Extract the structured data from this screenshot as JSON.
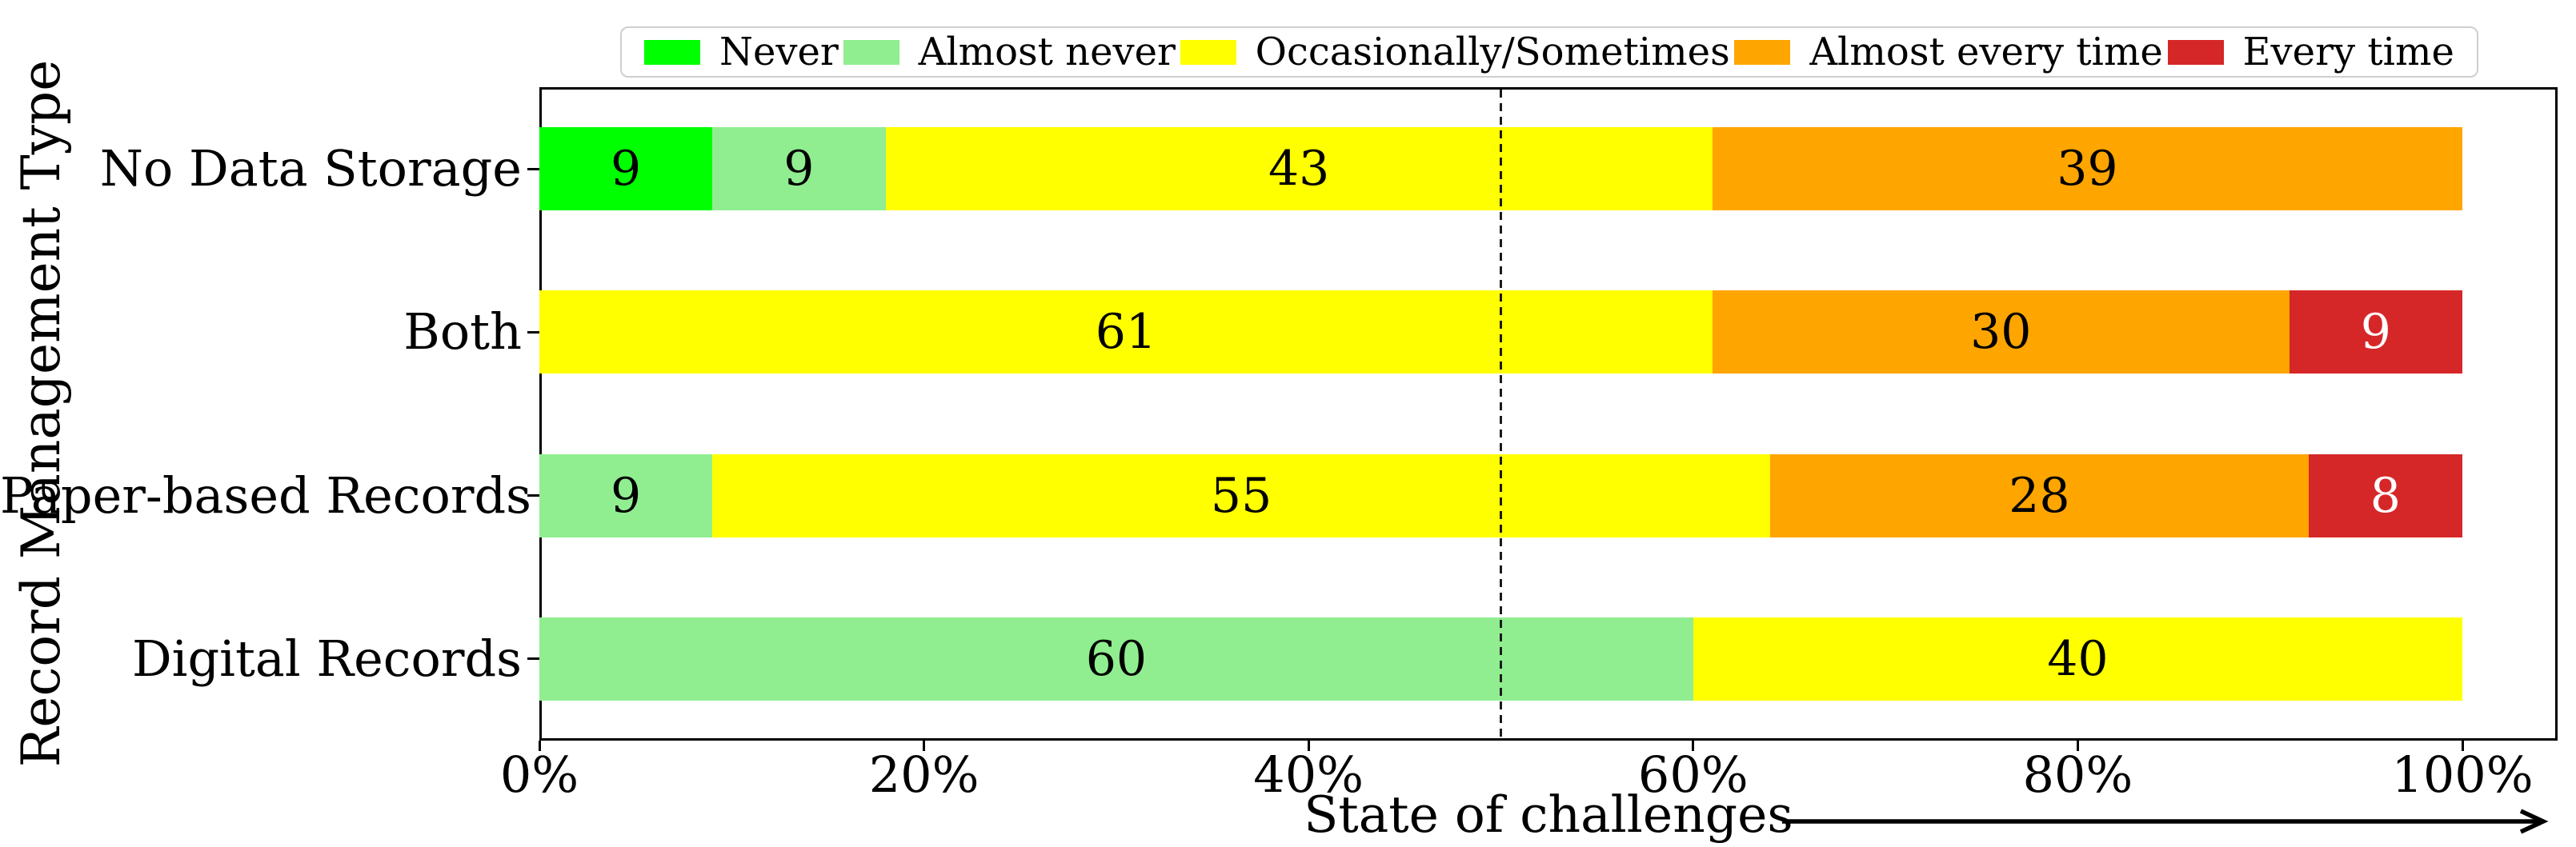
{
  "chart_data": {
    "type": "bar",
    "orientation": "horizontal",
    "stacked": true,
    "unit": "percent",
    "title": "",
    "xlabel": "State of challenges",
    "ylabel": "Record Management Type",
    "categories": [
      "No Data Storage",
      "Both",
      "Paper-based Records",
      "Digital Records"
    ],
    "series": [
      {
        "name": "Never",
        "color": "#00ff00",
        "label_color": "#000000",
        "values": [
          9,
          0,
          0,
          0
        ]
      },
      {
        "name": "Almost never",
        "color": "#90ee90",
        "label_color": "#000000",
        "values": [
          9,
          0,
          9,
          60
        ]
      },
      {
        "name": "Occasionally/Sometimes",
        "color": "#ffff00",
        "label_color": "#000000",
        "values": [
          43,
          61,
          55,
          40
        ]
      },
      {
        "name": "Almost every time",
        "color": "#ffa500",
        "label_color": "#000000",
        "values": [
          39,
          30,
          28,
          0
        ]
      },
      {
        "name": "Every time",
        "color": "#d62728",
        "label_color": "#ffffff",
        "values": [
          0,
          9,
          8,
          0
        ]
      }
    ],
    "x_ticks": [
      {
        "value": 0,
        "label": "0%"
      },
      {
        "value": 20,
        "label": "20%"
      },
      {
        "value": 40,
        "label": "40%"
      },
      {
        "value": 60,
        "label": "60%"
      },
      {
        "value": 80,
        "label": "80%"
      },
      {
        "value": 100,
        "label": "100%"
      }
    ],
    "xlim": [
      0,
      105
    ],
    "reference_line_value": 50,
    "grid": false,
    "legend_position": "top",
    "axis_color": "#000000",
    "reference_line_style": "dashed"
  }
}
